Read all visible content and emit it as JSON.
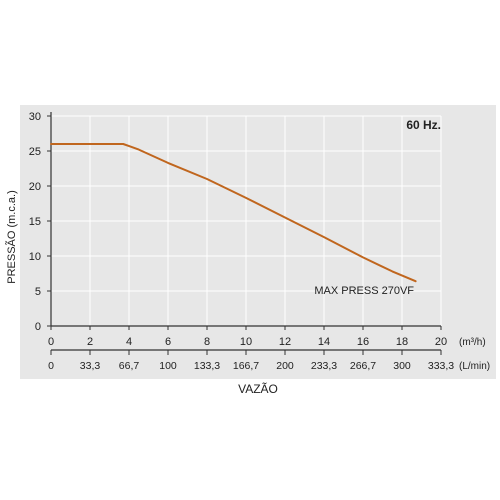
{
  "chart_data": {
    "type": "line",
    "frequency_label": "60 Hz.",
    "ylabel": "PRESSÃO (m.c.a.)",
    "xlabel": "VAZÃO",
    "x_unit_primary": "(m³/h)",
    "x_unit_secondary": "(L/min)",
    "xlim": [
      0,
      20
    ],
    "ylim": [
      0,
      30
    ],
    "grid": true,
    "yticks": [
      "0",
      "5",
      "10",
      "15",
      "20",
      "25",
      "30"
    ],
    "xticks_primary": [
      "0",
      "2",
      "4",
      "6",
      "8",
      "10",
      "12",
      "14",
      "16",
      "18",
      "20"
    ],
    "xticks_secondary": [
      "0",
      "33,3",
      "66,7",
      "100",
      "133,3",
      "166,7",
      "200",
      "233,3",
      "266,7",
      "300",
      "333,3"
    ],
    "series": [
      {
        "name": "MAX PRESS 270VF",
        "color": "#c0661e",
        "x": [
          0,
          3.7,
          4.5,
          6,
          8,
          10,
          12,
          14,
          16,
          17.5,
          18.7
        ],
        "y": [
          26,
          26,
          25.2,
          23.3,
          21,
          18.3,
          15.5,
          12.7,
          9.8,
          7.8,
          6.4
        ]
      }
    ],
    "colors": {
      "plot_background": "#e7e7e7",
      "grid": "#ffffff",
      "axis": "#333333"
    }
  }
}
